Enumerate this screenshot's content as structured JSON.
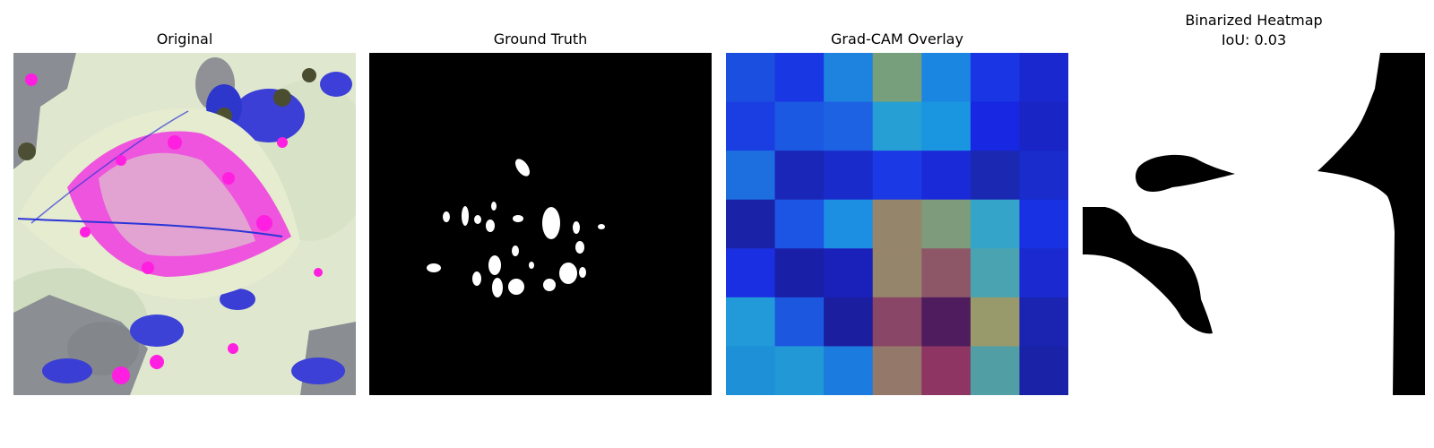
{
  "figure": {
    "panels": [
      {
        "title": "Original",
        "subtitle": ""
      },
      {
        "title": "Ground Truth",
        "subtitle": ""
      },
      {
        "title": "Grad-CAM Overlay",
        "subtitle": ""
      },
      {
        "title": "Binarized Heatmap",
        "subtitle": "IoU: 0.03"
      }
    ]
  },
  "gradcam_grid": {
    "rows": 7,
    "cols": 7,
    "colors": [
      [
        "#1b4fe0",
        "#1a37e4",
        "#1d83df",
        "#789f7c",
        "#1b85e2",
        "#1a35e4",
        "#1a29cf"
      ],
      [
        "#1b3ee2",
        "#1c59e2",
        "#1d62e2",
        "#26a0d4",
        "#1a96e1",
        "#1827e2",
        "#1a25c5"
      ],
      [
        "#1d6fe0",
        "#1a26b8",
        "#1a2bcb",
        "#1b39e4",
        "#1a2ad8",
        "#1b28b1",
        "#1a2ccc"
      ],
      [
        "#1a22a8",
        "#1c55e4",
        "#1d8fe3",
        "#95856a",
        "#7e9b7b",
        "#34a4c8",
        "#1831e2"
      ],
      [
        "#1b2fe2",
        "#1a1fa8",
        "#1a21bb",
        "#95856a",
        "#8d5767",
        "#4aa3b0",
        "#1a2ad0"
      ],
      [
        "#229ad9",
        "#1c57e0",
        "#1b1e9e",
        "#8a4666",
        "#4f1d5d",
        "#999a6c",
        "#1a24b0"
      ],
      [
        "#1d90d8",
        "#2298d6",
        "#1c7bdf",
        "#94786a",
        "#8e3564",
        "#519fa4",
        "#1a23a8"
      ]
    ]
  }
}
